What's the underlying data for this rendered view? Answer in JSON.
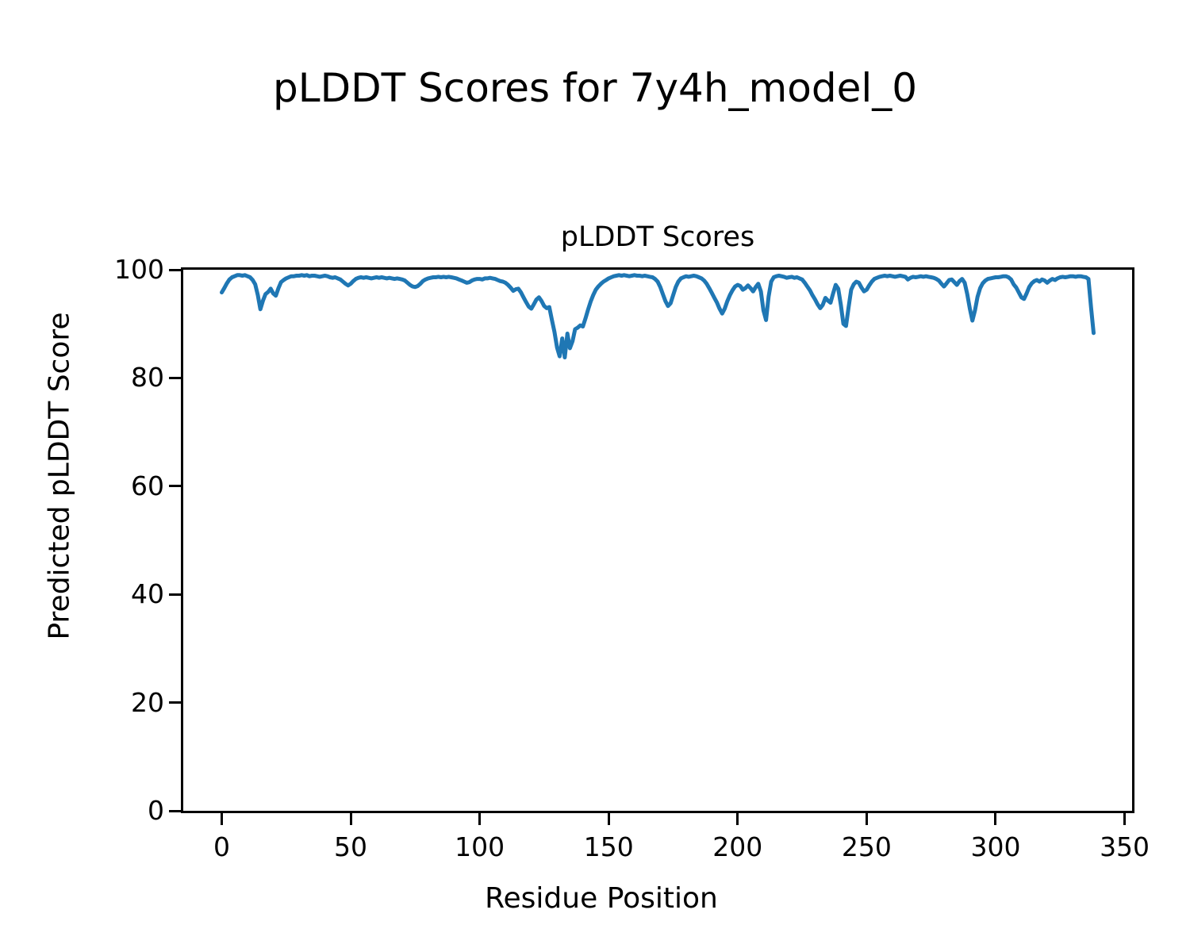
{
  "figure": {
    "suptitle": "pLDDT Scores for 7y4h_model_0"
  },
  "chart_data": {
    "type": "line",
    "title": "pLDDT Scores",
    "xlabel": "Residue Position",
    "ylabel": "Predicted pLDDT Score",
    "x_ticks": [
      0,
      50,
      100,
      150,
      200,
      250,
      300,
      350
    ],
    "y_ticks": [
      0,
      20,
      40,
      60,
      80,
      100
    ],
    "xlim": [
      -14.9,
      352.9
    ],
    "ylim": [
      0,
      100
    ],
    "grid": false,
    "legend_position": "none",
    "line_color": "#1f77b4",
    "line_width": 5,
    "series": [
      {
        "name": "pLDDT",
        "x_start": 0,
        "x_step": 1,
        "values": [
          95.8,
          96.6,
          97.5,
          98.2,
          98.6,
          98.8,
          99.0,
          99.0,
          98.9,
          99.0,
          98.8,
          98.6,
          98.1,
          97.3,
          95.3,
          92.7,
          94.3,
          95.5,
          95.9,
          96.5,
          95.6,
          95.2,
          96.6,
          97.7,
          98.1,
          98.4,
          98.6,
          98.8,
          98.8,
          98.9,
          98.9,
          99.0,
          98.9,
          99.0,
          98.8,
          98.9,
          98.9,
          98.8,
          98.7,
          98.8,
          98.9,
          98.8,
          98.6,
          98.5,
          98.6,
          98.4,
          98.2,
          97.8,
          97.4,
          97.1,
          97.4,
          97.9,
          98.3,
          98.5,
          98.6,
          98.5,
          98.6,
          98.5,
          98.4,
          98.5,
          98.6,
          98.5,
          98.6,
          98.5,
          98.4,
          98.5,
          98.4,
          98.3,
          98.4,
          98.3,
          98.2,
          98.0,
          97.6,
          97.2,
          96.9,
          96.8,
          97.0,
          97.4,
          97.9,
          98.2,
          98.4,
          98.5,
          98.6,
          98.6,
          98.7,
          98.6,
          98.7,
          98.6,
          98.7,
          98.6,
          98.5,
          98.4,
          98.2,
          98.0,
          97.8,
          97.6,
          97.7,
          98.0,
          98.2,
          98.3,
          98.3,
          98.2,
          98.4,
          98.4,
          98.5,
          98.4,
          98.3,
          98.1,
          97.9,
          97.8,
          97.6,
          97.2,
          96.7,
          96.1,
          96.4,
          96.5,
          95.8,
          94.9,
          94.0,
          93.2,
          92.8,
          93.6,
          94.5,
          94.9,
          94.2,
          93.3,
          92.9,
          93.1,
          90.7,
          88.5,
          85.6,
          84.0,
          87.3,
          83.8,
          88.2,
          85.5,
          86.8,
          89.0,
          89.3,
          89.7,
          89.5,
          91.0,
          92.6,
          94.1,
          95.3,
          96.3,
          96.9,
          97.4,
          97.8,
          98.1,
          98.4,
          98.6,
          98.8,
          98.9,
          99.0,
          98.9,
          99.0,
          98.9,
          98.8,
          98.9,
          99.0,
          98.9,
          98.9,
          98.8,
          98.9,
          98.8,
          98.7,
          98.6,
          98.3,
          97.8,
          96.8,
          95.5,
          94.2,
          93.3,
          93.8,
          95.3,
          96.8,
          97.8,
          98.4,
          98.6,
          98.8,
          98.7,
          98.8,
          98.9,
          98.8,
          98.6,
          98.4,
          98.0,
          97.4,
          96.6,
          95.7,
          94.8,
          93.9,
          92.8,
          91.9,
          92.8,
          94.2,
          95.3,
          96.2,
          96.9,
          97.2,
          97.0,
          96.3,
          96.6,
          97.1,
          96.6,
          96.0,
          96.8,
          97.4,
          96.0,
          92.5,
          90.7,
          95.0,
          97.8,
          98.6,
          98.8,
          98.9,
          98.8,
          98.7,
          98.5,
          98.6,
          98.7,
          98.5,
          98.6,
          98.4,
          98.2,
          97.6,
          96.9,
          96.2,
          95.3,
          94.5,
          93.6,
          92.9,
          93.5,
          94.8,
          94.3,
          93.9,
          95.6,
          97.2,
          96.5,
          93.5,
          90.0,
          89.6,
          93.0,
          96.3,
          97.3,
          97.8,
          97.6,
          96.7,
          96.0,
          96.3,
          97.1,
          97.8,
          98.3,
          98.5,
          98.7,
          98.8,
          98.9,
          98.8,
          98.9,
          98.8,
          98.7,
          98.8,
          98.9,
          98.8,
          98.7,
          98.2,
          98.5,
          98.7,
          98.6,
          98.7,
          98.8,
          98.7,
          98.8,
          98.7,
          98.6,
          98.5,
          98.3,
          98.0,
          97.4,
          96.9,
          97.5,
          98.1,
          98.2,
          97.7,
          97.2,
          97.9,
          98.3,
          97.6,
          95.5,
          92.8,
          90.6,
          92.5,
          95.0,
          96.6,
          97.5,
          98.0,
          98.3,
          98.4,
          98.5,
          98.6,
          98.6,
          98.7,
          98.8,
          98.8,
          98.6,
          98.2,
          97.3,
          96.7,
          95.8,
          94.9,
          94.6,
          95.6,
          96.8,
          97.5,
          97.9,
          98.1,
          97.8,
          98.2,
          98.0,
          97.6,
          98.0,
          98.3,
          98.1,
          98.4,
          98.6,
          98.7,
          98.6,
          98.7,
          98.8,
          98.8,
          98.7,
          98.8,
          98.8,
          98.7,
          98.6,
          98.3,
          93.0,
          88.3
        ]
      }
    ]
  }
}
